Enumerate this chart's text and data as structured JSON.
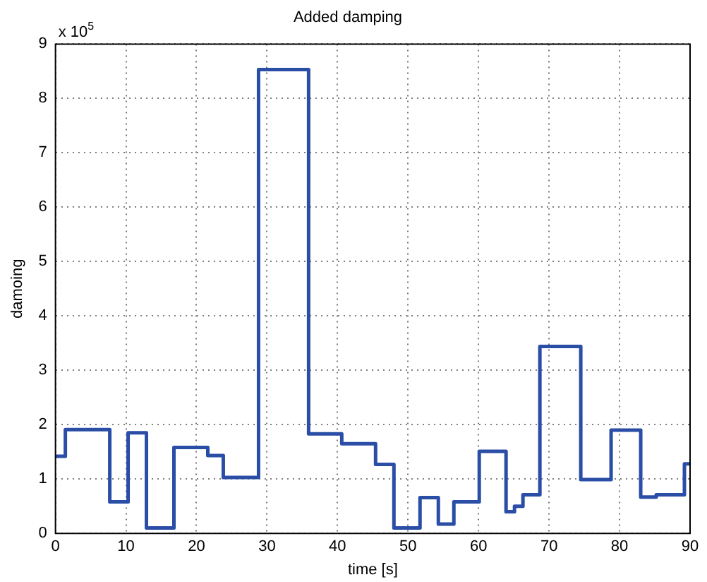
{
  "chart_data": {
    "type": "step",
    "title": "Added damping",
    "xlabel": "time [s]",
    "ylabel": "damoing",
    "annotations": [
      "x 10$^{5}$"
    ],
    "x": [
      0,
      1.4,
      7.7,
      10.3,
      12.9,
      16.8,
      21.6,
      23.8,
      28.8,
      35.9,
      40.6,
      45.4,
      48.0,
      51.7,
      54.3,
      56.5,
      60.1,
      63.9,
      65.1,
      66.3,
      68.7,
      74.5,
      78.8,
      83.0,
      85.2,
      89.2,
      90
    ],
    "series": [
      {
        "color": "#2a4ea6",
        "values": [
          1.42,
          1.91,
          0.58,
          1.85,
          0.1,
          1.58,
          1.43,
          1.03,
          8.53,
          1.83,
          1.65,
          1.27,
          0.1,
          0.66,
          0.17,
          0.58,
          1.51,
          0.4,
          0.5,
          0.71,
          3.44,
          0.99,
          1.9,
          0.67,
          0.71,
          1.28,
          1.28
        ]
      }
    ],
    "xlim": [
      0,
      90
    ],
    "xticks": [
      0,
      10,
      20,
      30,
      40,
      50,
      60,
      70,
      80,
      90
    ],
    "ylim": [
      0,
      9
    ],
    "yticks": [
      0,
      1,
      2,
      3,
      4,
      5,
      6,
      7,
      8,
      9
    ],
    "grid": true,
    "legend": false,
    "line_style": "solid",
    "marker": "none"
  }
}
